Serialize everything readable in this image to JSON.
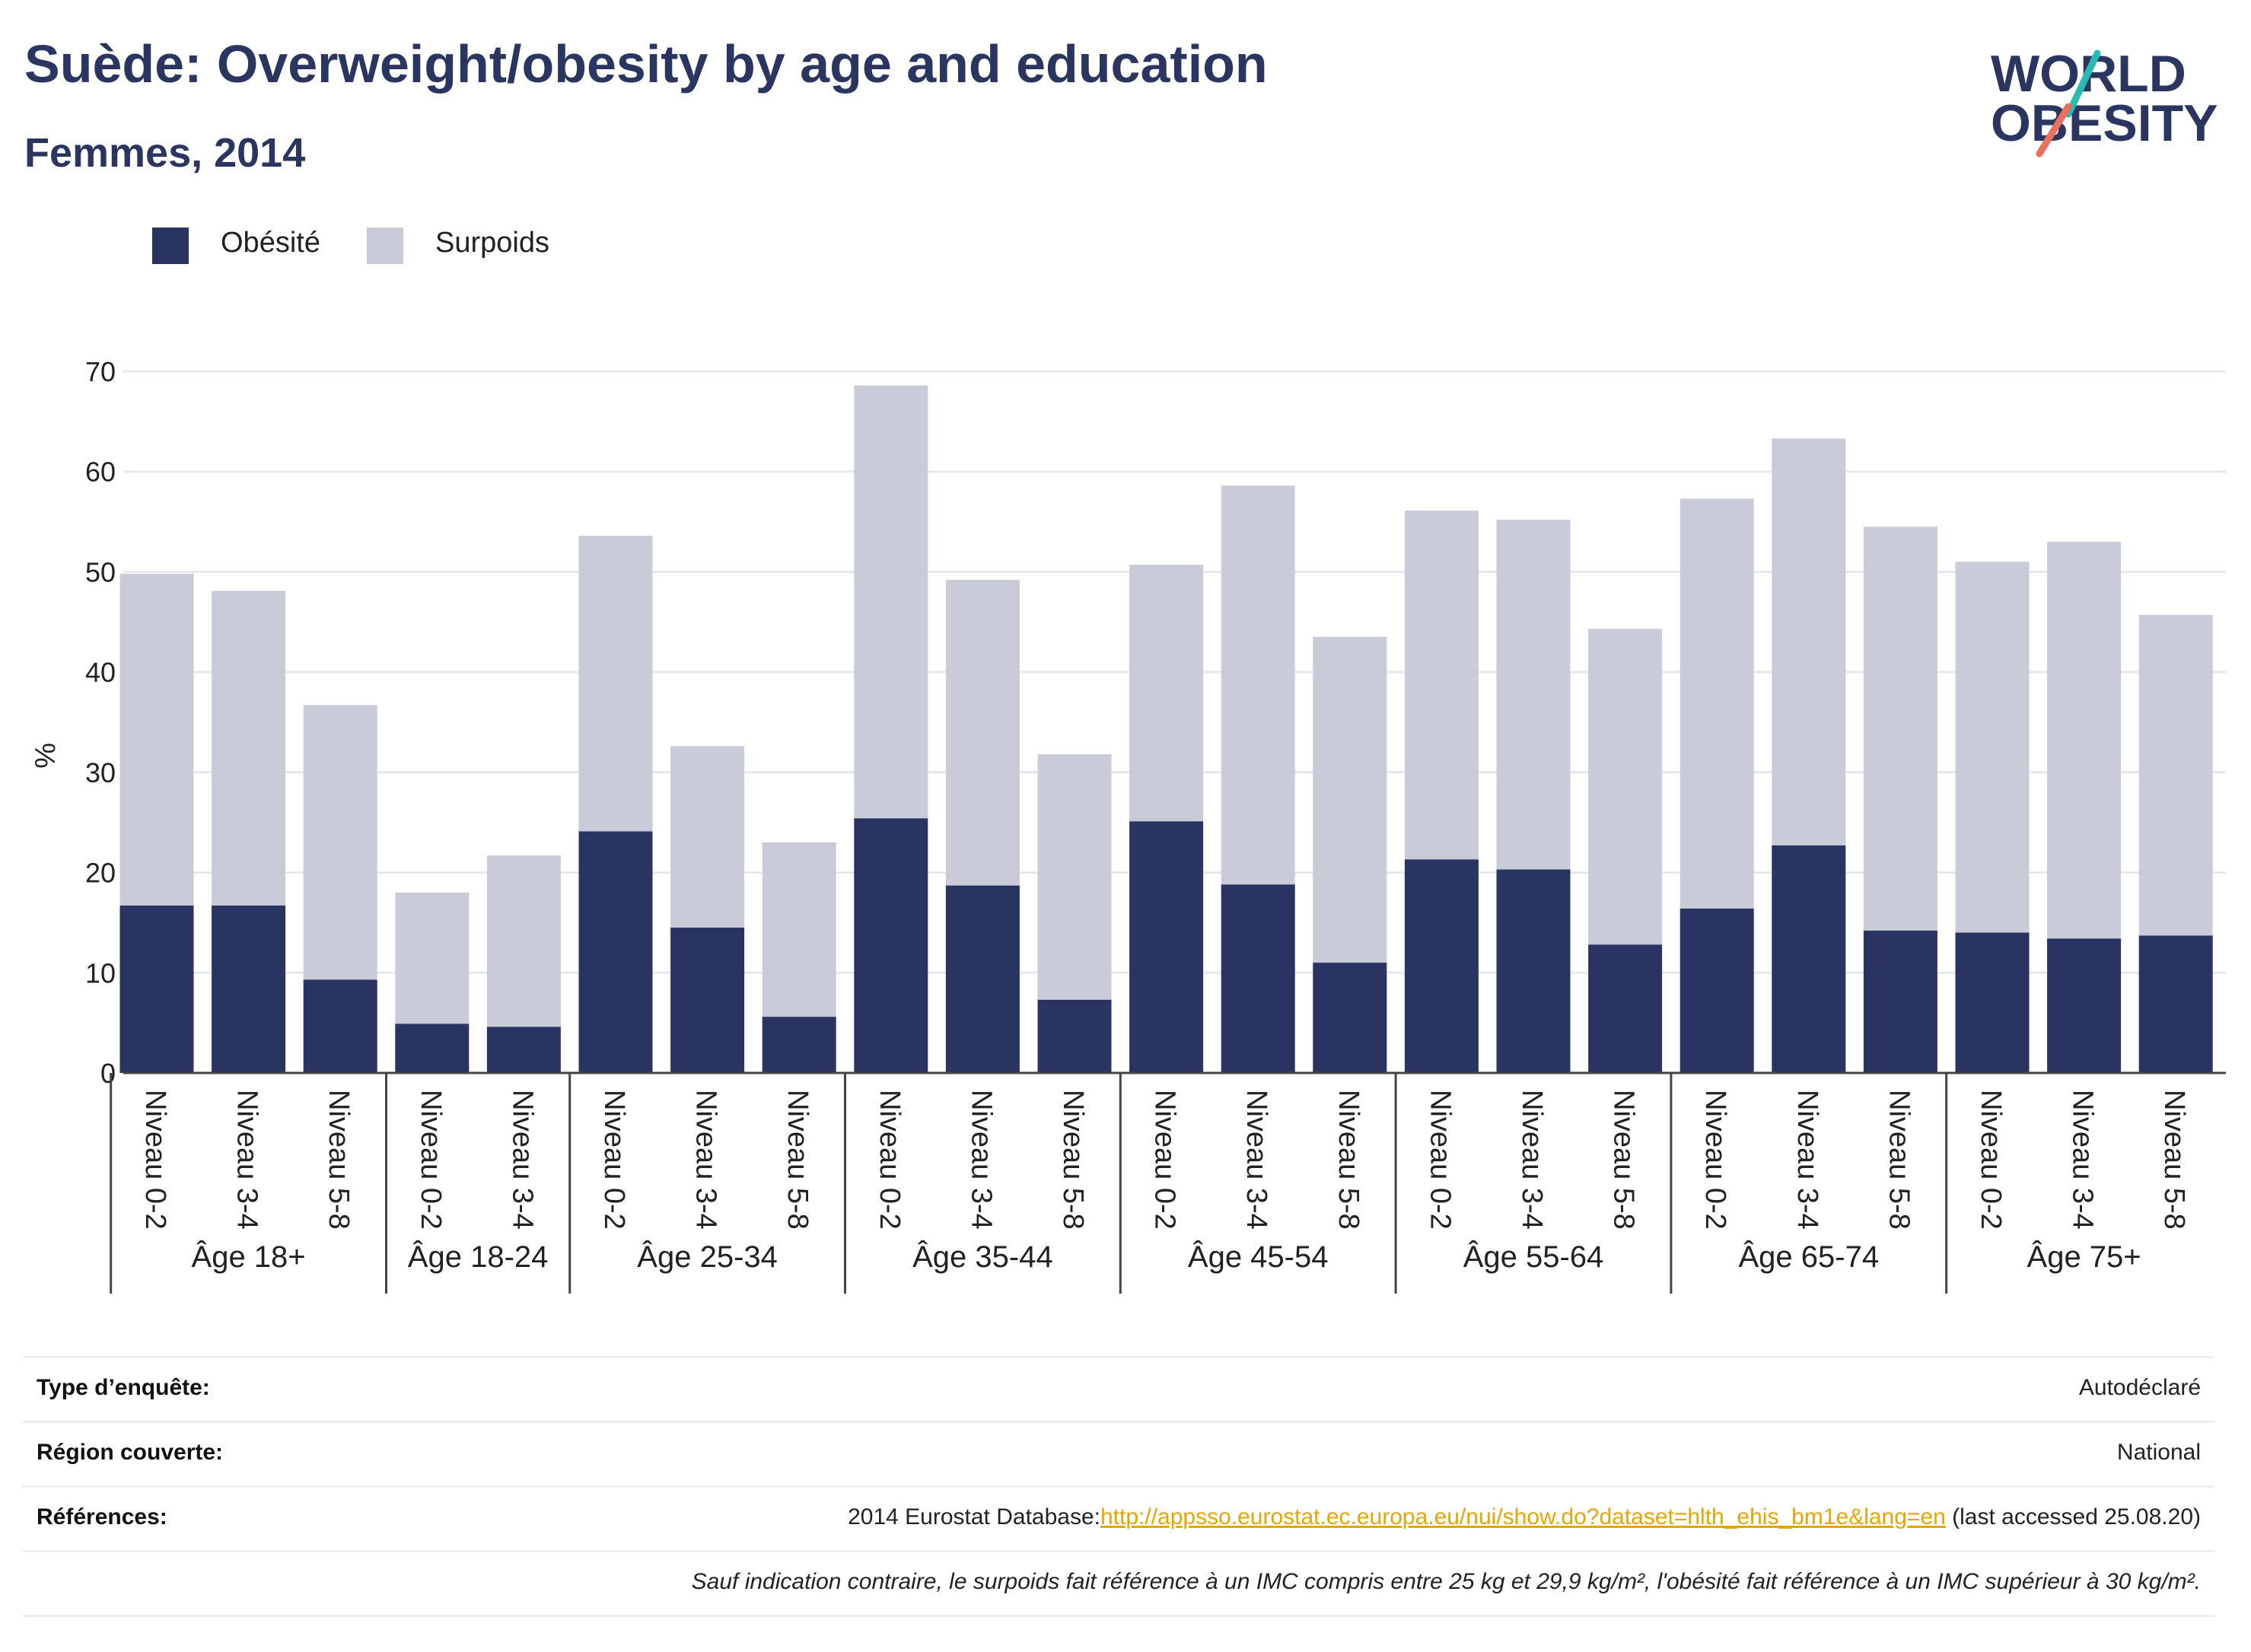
{
  "title": "Suède: Overweight/obesity by age and education",
  "subtitle": "Femmes, 2014",
  "logo": {
    "line1": "WORLD",
    "line2": "OBESITY"
  },
  "colors": {
    "obesity": "#293462",
    "overweight": "#c9ccd8",
    "grid": "#e6e8ee",
    "logo_text": "#2a3560",
    "logo_slash_top": "#2bb9b4",
    "logo_slash_bottom": "#e8705f"
  },
  "legend": [
    {
      "label": "Obésité",
      "color": "#293462"
    },
    {
      "label": "Surpoids",
      "color": "#c9ccd8"
    }
  ],
  "chart_data": {
    "type": "bar",
    "stacked": true,
    "ylabel": "%",
    "ylim": [
      0,
      70
    ],
    "yticks": [
      0,
      10,
      20,
      30,
      40,
      50,
      60,
      70
    ],
    "grid": true,
    "legend_position": "top-left",
    "groups": [
      {
        "label": "Âge 18+",
        "categories": [
          "Niveau 0-2",
          "Niveau 3-4",
          "Niveau 5-8"
        ]
      },
      {
        "label": "Âge 18-24",
        "categories": [
          "Niveau 0-2",
          "Niveau 3-4"
        ]
      },
      {
        "label": "Âge 25-34",
        "categories": [
          "Niveau 0-2",
          "Niveau 3-4",
          "Niveau 5-8"
        ]
      },
      {
        "label": "Âge 35-44",
        "categories": [
          "Niveau 0-2",
          "Niveau 3-4",
          "Niveau 5-8"
        ]
      },
      {
        "label": "Âge 45-54",
        "categories": [
          "Niveau 0-2",
          "Niveau 3-4",
          "Niveau 5-8"
        ]
      },
      {
        "label": "Âge 55-64",
        "categories": [
          "Niveau 0-2",
          "Niveau 3-4",
          "Niveau 5-8"
        ]
      },
      {
        "label": "Âge 65-74",
        "categories": [
          "Niveau 0-2",
          "Niveau 3-4",
          "Niveau 5-8"
        ]
      },
      {
        "label": "Âge 75+",
        "categories": [
          "Niveau 0-2",
          "Niveau 3-4",
          "Niveau 5-8"
        ]
      }
    ],
    "series": [
      {
        "name": "Obésité",
        "values": [
          16.7,
          16.7,
          9.3,
          4.9,
          4.6,
          24.1,
          14.5,
          5.6,
          25.4,
          18.7,
          7.3,
          25.1,
          18.8,
          11.0,
          21.3,
          20.3,
          12.8,
          16.4,
          22.7,
          14.2,
          14.0,
          13.4,
          13.7
        ]
      },
      {
        "name": "Surpoids",
        "values": [
          33.1,
          31.4,
          27.4,
          13.1,
          17.1,
          29.5,
          18.1,
          17.4,
          43.2,
          30.5,
          24.5,
          25.6,
          39.8,
          32.5,
          34.8,
          34.9,
          31.5,
          40.9,
          40.6,
          40.3,
          37.0,
          39.6,
          32.0
        ]
      }
    ]
  },
  "info": {
    "survey_label": "Type d’enquête:",
    "survey_value": "Autodéclaré",
    "region_label": "Région couverte:",
    "region_value": "National",
    "ref_label": "Références:",
    "ref_prefix": "2014 Eurostat Database:",
    "ref_link": "http://appsso.eurostat.ec.europa.eu/nui/show.do?dataset=hlth_ehis_bm1e&lang=en",
    "ref_suffix": " (last accessed 25.08.20)",
    "note": "Sauf indication contraire, le surpoids fait référence à un IMC compris entre 25 kg et 29,9 kg/m², l'obésité fait référence à un IMC supérieur à 30 kg/m²."
  }
}
